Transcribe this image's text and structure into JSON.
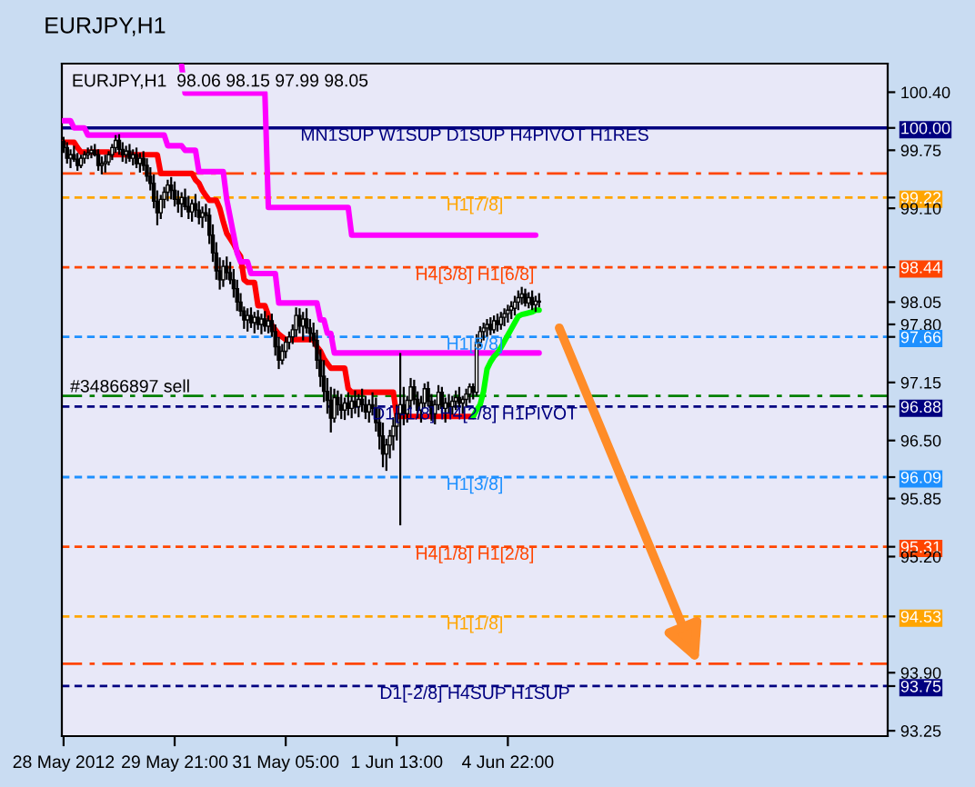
{
  "chart_data": {
    "type": "candlestick",
    "title": "EURJPY,H1",
    "subtitle": "EURJPY,H1  98.06 98.15 97.99 98.05",
    "categories": [
      "28 May 2012",
      null,
      null,
      null,
      null,
      null,
      null,
      null,
      null,
      null,
      null,
      null,
      null,
      null,
      null,
      null,
      null,
      null,
      null,
      null,
      null,
      null,
      null,
      null,
      null,
      null,
      null,
      null,
      null,
      null,
      null,
      null,
      "29 May 21:00",
      null,
      null,
      null,
      null,
      null,
      null,
      null,
      null,
      null,
      null,
      null,
      null,
      null,
      null,
      null,
      null,
      null,
      null,
      null,
      null,
      null,
      null,
      null,
      null,
      null,
      null,
      null,
      null,
      null,
      null,
      null,
      "31 May 05:00",
      null,
      null,
      null,
      null,
      null,
      null,
      null,
      null,
      null,
      null,
      null,
      null,
      null,
      null,
      null,
      null,
      null,
      null,
      null,
      null,
      null,
      null,
      null,
      null,
      null,
      null,
      null,
      null,
      null,
      null,
      null,
      "1 Jun 13:00",
      null,
      null,
      null,
      null,
      null,
      null,
      null,
      null,
      null,
      null,
      null,
      null,
      null,
      null,
      null,
      null,
      null,
      null,
      null,
      null,
      null,
      null,
      null,
      null,
      null,
      null,
      null,
      null,
      null,
      null,
      null,
      "4 Jun 22:00",
      null,
      null,
      null,
      null,
      null,
      null,
      null,
      null,
      null
    ],
    "ohlc": [
      [
        99.85,
        99.9,
        99.72,
        99.78
      ],
      [
        99.78,
        99.84,
        99.6,
        99.66
      ],
      [
        99.66,
        99.76,
        99.55,
        99.7
      ],
      [
        99.7,
        99.8,
        99.62,
        99.65
      ],
      [
        99.65,
        99.72,
        99.52,
        99.58
      ],
      [
        99.58,
        99.7,
        99.55,
        99.66
      ],
      [
        99.66,
        99.74,
        99.6,
        99.7
      ],
      [
        99.7,
        99.78,
        99.65,
        99.72
      ],
      [
        99.72,
        99.8,
        99.66,
        99.75
      ],
      [
        99.75,
        99.82,
        99.68,
        99.7
      ],
      [
        99.7,
        99.76,
        99.52,
        99.58
      ],
      [
        99.58,
        99.68,
        99.48,
        99.6
      ],
      [
        99.6,
        99.7,
        99.5,
        99.62
      ],
      [
        99.62,
        99.74,
        99.58,
        99.7
      ],
      [
        99.7,
        99.82,
        99.64,
        99.78
      ],
      [
        99.78,
        99.92,
        99.72,
        99.86
      ],
      [
        99.86,
        99.93,
        99.7,
        99.76
      ],
      [
        99.76,
        99.84,
        99.62,
        99.7
      ],
      [
        99.7,
        99.8,
        99.6,
        99.74
      ],
      [
        99.74,
        99.82,
        99.62,
        99.66
      ],
      [
        99.66,
        99.76,
        99.58,
        99.7
      ],
      [
        99.7,
        99.78,
        99.55,
        99.6
      ],
      [
        99.6,
        99.72,
        99.5,
        99.66
      ],
      [
        99.66,
        99.74,
        99.52,
        99.58
      ],
      [
        99.58,
        99.66,
        99.4,
        99.46
      ],
      [
        99.46,
        99.56,
        99.3,
        99.38
      ],
      [
        99.38,
        99.48,
        99.1,
        99.18
      ],
      [
        99.18,
        99.3,
        98.91,
        99.05
      ],
      [
        99.05,
        99.25,
        98.98,
        99.2
      ],
      [
        99.2,
        99.34,
        99.1,
        99.28
      ],
      [
        99.28,
        99.42,
        99.18,
        99.36
      ],
      [
        99.36,
        99.45,
        99.2,
        99.3
      ],
      [
        99.3,
        99.4,
        99.12,
        99.2
      ],
      [
        99.2,
        99.3,
        99.05,
        99.15
      ],
      [
        99.15,
        99.28,
        99.0,
        99.22
      ],
      [
        99.22,
        99.32,
        99.08,
        99.12
      ],
      [
        99.12,
        99.24,
        98.98,
        99.06
      ],
      [
        99.06,
        99.2,
        98.95,
        99.15
      ],
      [
        99.15,
        99.26,
        99.0,
        99.08
      ],
      [
        99.08,
        99.18,
        98.92,
        99.0
      ],
      [
        99.0,
        99.12,
        98.88,
        99.05
      ],
      [
        99.05,
        99.15,
        98.95,
        99.02
      ],
      [
        99.02,
        99.1,
        98.7,
        98.8
      ],
      [
        98.8,
        98.92,
        98.5,
        98.6
      ],
      [
        98.6,
        98.72,
        98.3,
        98.4
      ],
      [
        98.4,
        98.55,
        98.19,
        98.3
      ],
      [
        98.3,
        98.52,
        98.22,
        98.45
      ],
      [
        98.45,
        98.56,
        98.3,
        98.38
      ],
      [
        98.38,
        98.5,
        98.25,
        98.3
      ],
      [
        98.3,
        98.42,
        98.1,
        98.2
      ],
      [
        98.2,
        98.3,
        97.95,
        98.05
      ],
      [
        98.05,
        98.15,
        97.89,
        97.95
      ],
      [
        97.95,
        98.0,
        97.75,
        97.85
      ],
      [
        97.85,
        97.98,
        97.72,
        97.9
      ],
      [
        97.9,
        97.99,
        97.76,
        97.82
      ],
      [
        97.82,
        97.94,
        97.7,
        97.88
      ],
      [
        97.88,
        97.96,
        97.74,
        97.8
      ],
      [
        97.8,
        97.92,
        97.69,
        97.86
      ],
      [
        97.86,
        97.95,
        97.72,
        97.78
      ],
      [
        97.78,
        97.9,
        97.7,
        97.84
      ],
      [
        97.84,
        97.92,
        97.66,
        97.72
      ],
      [
        97.72,
        97.8,
        97.45,
        97.55
      ],
      [
        97.55,
        97.66,
        97.3,
        97.4
      ],
      [
        97.4,
        97.58,
        97.35,
        97.5
      ],
      [
        97.5,
        97.66,
        97.42,
        97.6
      ],
      [
        97.6,
        97.72,
        97.52,
        97.66
      ],
      [
        97.66,
        97.8,
        97.58,
        97.74
      ],
      [
        97.74,
        97.99,
        97.66,
        97.9
      ],
      [
        97.9,
        97.98,
        97.7,
        97.78
      ],
      [
        97.78,
        97.94,
        97.62,
        97.86
      ],
      [
        97.86,
        97.98,
        97.7,
        97.76
      ],
      [
        97.76,
        97.86,
        97.6,
        97.7
      ],
      [
        97.7,
        97.82,
        97.55,
        97.62
      ],
      [
        97.62,
        97.74,
        97.3,
        97.4
      ],
      [
        97.4,
        97.52,
        97.1,
        97.22
      ],
      [
        97.22,
        97.4,
        96.93,
        97.05
      ],
      [
        97.05,
        97.2,
        96.8,
        96.95
      ],
      [
        96.95,
        97.1,
        96.59,
        96.75
      ],
      [
        96.75,
        97.08,
        96.7,
        96.98
      ],
      [
        96.98,
        97.06,
        96.78,
        96.9
      ],
      [
        96.9,
        97.02,
        96.74,
        96.84
      ],
      [
        96.84,
        96.98,
        96.73,
        96.92
      ],
      [
        96.92,
        97.04,
        96.78,
        96.86
      ],
      [
        96.86,
        97.0,
        96.75,
        96.94
      ],
      [
        96.94,
        97.06,
        96.8,
        96.88
      ],
      [
        96.88,
        97.02,
        96.76,
        96.96
      ],
      [
        96.96,
        97.08,
        96.82,
        96.9
      ],
      [
        96.9,
        97.0,
        96.74,
        96.82
      ],
      [
        96.82,
        96.96,
        96.7,
        96.9
      ],
      [
        96.9,
        97.04,
        96.78,
        96.86
      ],
      [
        96.86,
        96.98,
        96.6,
        96.7
      ],
      [
        96.7,
        96.86,
        96.4,
        96.55
      ],
      [
        96.55,
        96.7,
        96.2,
        96.35
      ],
      [
        96.35,
        96.52,
        96.16,
        96.45
      ],
      [
        96.45,
        96.62,
        96.3,
        96.55
      ],
      [
        96.55,
        96.76,
        96.39,
        96.66
      ],
      [
        96.66,
        96.9,
        96.5,
        96.8
      ],
      [
        96.8,
        97.48,
        95.55,
        96.9
      ],
      [
        96.9,
        97.1,
        96.67,
        96.8
      ],
      [
        96.8,
        97.0,
        96.7,
        96.95
      ],
      [
        96.95,
        97.2,
        96.85,
        97.1
      ],
      [
        97.1,
        97.18,
        96.9,
        96.96
      ],
      [
        96.96,
        97.05,
        96.75,
        96.84
      ],
      [
        96.84,
        97.0,
        96.7,
        96.92
      ],
      [
        96.92,
        97.14,
        96.86,
        97.08
      ],
      [
        97.08,
        97.16,
        96.88,
        96.94
      ],
      [
        96.94,
        97.02,
        96.72,
        96.8
      ],
      [
        96.8,
        96.96,
        96.68,
        96.9
      ],
      [
        96.9,
        97.12,
        96.84,
        97.04
      ],
      [
        97.04,
        97.1,
        96.8,
        96.86
      ],
      [
        96.86,
        96.98,
        96.7,
        96.92
      ],
      [
        96.92,
        97.02,
        96.8,
        96.88
      ],
      [
        96.88,
        97.0,
        96.79,
        96.94
      ],
      [
        96.94,
        97.06,
        96.84,
        96.98
      ],
      [
        96.98,
        97.1,
        96.86,
        96.92
      ],
      [
        96.92,
        97.0,
        96.8,
        96.96
      ],
      [
        96.96,
        97.08,
        96.88,
        97.02
      ],
      [
        97.02,
        97.14,
        96.92,
        97.1
      ],
      [
        97.1,
        97.14,
        96.96,
        97.04
      ],
      [
        97.04,
        97.69,
        97.0,
        97.6
      ],
      [
        97.6,
        97.78,
        97.55,
        97.72
      ],
      [
        97.72,
        97.82,
        97.62,
        97.76
      ],
      [
        97.76,
        97.86,
        97.66,
        97.8
      ],
      [
        97.8,
        97.88,
        97.68,
        97.74
      ],
      [
        97.74,
        97.9,
        97.7,
        97.84
      ],
      [
        97.84,
        97.92,
        97.72,
        97.8
      ],
      [
        97.8,
        97.94,
        97.74,
        97.88
      ],
      [
        97.88,
        97.98,
        97.78,
        97.92
      ],
      [
        97.92,
        98.02,
        97.82,
        97.96
      ],
      [
        97.96,
        98.06,
        97.86,
        98.0
      ],
      [
        97.98,
        98.12,
        97.9,
        98.05
      ],
      [
        98.05,
        98.18,
        97.96,
        98.1
      ],
      [
        98.1,
        98.22,
        98.02,
        98.14
      ],
      [
        98.14,
        98.2,
        98.0,
        98.04
      ],
      [
        98.04,
        98.16,
        97.98,
        98.1
      ],
      [
        98.1,
        98.18,
        97.96,
        98.02
      ],
      [
        98.02,
        98.12,
        97.94,
        98.06
      ],
      [
        98.06,
        98.15,
        97.99,
        98.05
      ]
    ],
    "series": [
      {
        "type": "line",
        "color": "#ff0000",
        "values": [
          99.84,
          99.84,
          99.84,
          99.84,
          99.78,
          99.73,
          99.73,
          99.73,
          99.73,
          99.73,
          99.73,
          99.73,
          99.73,
          99.73,
          99.7,
          99.7,
          99.7,
          99.7,
          99.7,
          99.7,
          99.7,
          99.7,
          99.7,
          99.7,
          99.7,
          99.7,
          99.7,
          99.7,
          99.49,
          99.49,
          99.49,
          99.49,
          99.49,
          99.49,
          99.49,
          99.49,
          99.49,
          99.49,
          99.42,
          99.38,
          99.3,
          99.24,
          99.19,
          99.19,
          99.19,
          99.1,
          98.95,
          98.82,
          98.76,
          98.7,
          98.62,
          98.56,
          98.3,
          98.27,
          98.27,
          98.27,
          98.01,
          98.01,
          98.01,
          97.9,
          97.79,
          97.74,
          97.69,
          97.66,
          97.63,
          97.63,
          97.63,
          97.63,
          97.63,
          97.63,
          97.63,
          97.63,
          97.63,
          97.55,
          97.5,
          97.42,
          97.36,
          97.31,
          97.31,
          97.31,
          97.31,
          97.31,
          97.08,
          97.04,
          97.04,
          97.04,
          97.04,
          97.04,
          97.04,
          97.04,
          97.04,
          97.04,
          97.04,
          97.04,
          97.04,
          97.04,
          96.77,
          96.77,
          96.77,
          96.77,
          96.77,
          96.77,
          96.77,
          96.77,
          96.77,
          96.77,
          96.77,
          96.77,
          96.77,
          96.77,
          96.77,
          96.77,
          96.77,
          96.77,
          96.77,
          96.77,
          96.77,
          96.77,
          96.77,
          null,
          null,
          null,
          null,
          null,
          null,
          null,
          null,
          null,
          null,
          null,
          null,
          null,
          null,
          null,
          null,
          null,
          null,
          null
        ]
      },
      {
        "type": "line",
        "color": "#ff00ff",
        "values": [
          100.08,
          100.08,
          100.08,
          100.0,
          100.0,
          100.0,
          100.0,
          99.92,
          99.92,
          99.92,
          99.92,
          99.92,
          99.92,
          99.92,
          99.92,
          99.92,
          99.92,
          99.92,
          99.92,
          99.92,
          99.92,
          99.92,
          99.92,
          99.92,
          99.92,
          99.92,
          99.92,
          99.92,
          99.92,
          99.92,
          99.8,
          99.8,
          99.8,
          99.8,
          99.8,
          99.75,
          99.75,
          99.75,
          99.75,
          99.51,
          99.51,
          99.51,
          99.51,
          99.51,
          99.51,
          99.51,
          99.51,
          99.2,
          99.0,
          98.8,
          98.6,
          98.5,
          98.5,
          98.5,
          98.37,
          98.37,
          98.37,
          98.37,
          98.37,
          98.37,
          98.37,
          98.37,
          98.04,
          98.04,
          98.04,
          98.04,
          98.04,
          98.04,
          98.04,
          98.04,
          98.04,
          98.04,
          98.04,
          98.04,
          97.85,
          97.85,
          97.7,
          97.7,
          97.48,
          97.48,
          97.48,
          97.48,
          97.48,
          97.48,
          97.48,
          97.48,
          97.48,
          97.48,
          97.48,
          97.48,
          97.48,
          97.48,
          97.48,
          97.48,
          97.48,
          97.48,
          97.48,
          97.48,
          97.48,
          97.48,
          97.48,
          97.48,
          97.48,
          97.48,
          97.48,
          97.48,
          97.48,
          97.48,
          97.48,
          97.48,
          97.48,
          97.48,
          97.48,
          97.48,
          97.48,
          97.48,
          97.48,
          97.48,
          97.48,
          97.48,
          97.48,
          97.48,
          97.48,
          97.48,
          97.48,
          97.48,
          97.48,
          97.48,
          97.48,
          97.48,
          97.48,
          97.48,
          97.48,
          97.48,
          97.48,
          97.48,
          97.48,
          97.48
        ]
      },
      {
        "type": "line",
        "color": "#ff00ff",
        "values": [
          null,
          null,
          null,
          null,
          null,
          null,
          null,
          null,
          null,
          null,
          null,
          null,
          null,
          null,
          null,
          null,
          null,
          null,
          null,
          null,
          null,
          null,
          null,
          null,
          null,
          null,
          null,
          null,
          null,
          null,
          null,
          null,
          null,
          null,
          100.7,
          100.39,
          100.39,
          100.39,
          100.39,
          100.39,
          100.39,
          100.39,
          100.39,
          100.39,
          100.39,
          100.39,
          100.39,
          100.39,
          100.39,
          100.39,
          100.39,
          100.39,
          100.39,
          100.39,
          100.39,
          100.39,
          100.39,
          100.39,
          100.39,
          99.11,
          99.11,
          99.11,
          99.11,
          99.11,
          99.11,
          99.11,
          99.11,
          99.11,
          99.11,
          99.11,
          99.11,
          99.11,
          99.11,
          99.11,
          99.11,
          99.11,
          99.11,
          99.11,
          99.11,
          99.11,
          99.11,
          99.11,
          99.11,
          98.8,
          98.8,
          98.8,
          98.8,
          98.8,
          98.8,
          98.8,
          98.8,
          98.8,
          98.8,
          98.8,
          98.8,
          98.8,
          98.8,
          98.8,
          98.8,
          98.8,
          98.8,
          98.8,
          98.8,
          98.8,
          98.8,
          98.8,
          98.8,
          98.8,
          98.8,
          98.8,
          98.8,
          98.8,
          98.8,
          98.8,
          98.8,
          98.8,
          98.8,
          98.8,
          98.8,
          98.8,
          98.8,
          98.8,
          98.8,
          98.8,
          98.8,
          98.8,
          98.8,
          98.8,
          98.8,
          98.8,
          98.8,
          98.8,
          98.8,
          98.8,
          98.8,
          98.8,
          98.8,
          null
        ]
      },
      {
        "type": "line",
        "color": "#00ff00",
        "values": [
          null,
          null,
          null,
          null,
          null,
          null,
          null,
          null,
          null,
          null,
          null,
          null,
          null,
          null,
          null,
          null,
          null,
          null,
          null,
          null,
          null,
          null,
          null,
          null,
          null,
          null,
          null,
          null,
          null,
          null,
          null,
          null,
          null,
          null,
          null,
          null,
          null,
          null,
          null,
          null,
          null,
          null,
          null,
          null,
          null,
          null,
          null,
          null,
          null,
          null,
          null,
          null,
          null,
          null,
          null,
          null,
          null,
          null,
          null,
          null,
          null,
          null,
          null,
          null,
          null,
          null,
          null,
          null,
          null,
          null,
          null,
          null,
          null,
          null,
          null,
          null,
          null,
          null,
          null,
          null,
          null,
          null,
          null,
          null,
          null,
          null,
          null,
          null,
          null,
          null,
          null,
          null,
          null,
          null,
          null,
          null,
          null,
          null,
          null,
          null,
          null,
          null,
          null,
          null,
          null,
          null,
          null,
          null,
          null,
          null,
          null,
          null,
          null,
          null,
          null,
          null,
          null,
          null,
          96.77,
          96.84,
          96.9,
          97.05,
          97.3,
          97.38,
          97.44,
          97.48,
          97.54,
          97.61,
          97.68,
          97.75,
          97.82,
          97.89,
          97.91,
          97.92,
          97.93,
          97.94,
          97.96,
          97.96
        ]
      }
    ],
    "ylim": [
      93.19,
      100.72
    ],
    "yticks": [
      {
        "value": 100.4,
        "label": "100.40"
      },
      {
        "value": 100.0,
        "label": "100.00"
      },
      {
        "value": 99.75,
        "label": "99.75"
      },
      {
        "value": 99.22,
        "label": "99.22"
      },
      {
        "value": 99.1,
        "label": "99.10"
      },
      {
        "value": 98.44,
        "label": "98.44"
      },
      {
        "value": 98.05,
        "label": "98.05"
      },
      {
        "value": 97.8,
        "label": "97.80"
      },
      {
        "value": 97.66,
        "label": "97.66"
      },
      {
        "value": 97.15,
        "label": "97.15"
      },
      {
        "value": 96.88,
        "label": "96.88"
      },
      {
        "value": 96.5,
        "label": "96.50"
      },
      {
        "value": 96.09,
        "label": "96.09"
      },
      {
        "value": 95.85,
        "label": "95.85"
      },
      {
        "value": 95.31,
        "label": "95.31"
      },
      {
        "value": 95.2,
        "label": "95.20"
      },
      {
        "value": 94.53,
        "label": "94.53"
      },
      {
        "value": 93.9,
        "label": "93.90"
      },
      {
        "value": 93.75,
        "label": "93.75"
      },
      {
        "value": 93.25,
        "label": "93.25"
      }
    ],
    "ref_lines": [
      {
        "axis": "y",
        "value": 100.0,
        "label": "MN1SUP W1SUP D1SUP H4PIVOT H1RES",
        "color": "#000080",
        "line_style": "solid"
      },
      {
        "axis": "y",
        "value": 99.49,
        "color": "#ff4500",
        "line_style": "dashdot"
      },
      {
        "axis": "y",
        "value": 99.22,
        "label": "H1[7/8]",
        "color": "#ffa500",
        "line_style": "dashed"
      },
      {
        "axis": "y",
        "value": 98.44,
        "label": "H4[3/8] H1[6/8]",
        "color": "#ff4500",
        "line_style": "dashed"
      },
      {
        "axis": "y",
        "value": 97.66,
        "label": "H1[5/8]",
        "color": "#1e90ff",
        "line_style": "dashed"
      },
      {
        "axis": "y",
        "value": 97.0,
        "color": "#008000",
        "line_style": "dashdot"
      },
      {
        "axis": "y",
        "value": 96.88,
        "label": "D1[-1/8] H4[2/8] H1PIVOT",
        "color": "#000080",
        "line_style": "dashed"
      },
      {
        "axis": "y",
        "value": 96.09,
        "label": "H1[3/8]",
        "color": "#1e90ff",
        "line_style": "dashed"
      },
      {
        "axis": "y",
        "value": 95.31,
        "label": "H4[1/8] H1[2/8]",
        "color": "#ff4500",
        "line_style": "dashed"
      },
      {
        "axis": "y",
        "value": 94.53,
        "label": "H1[1/8]",
        "color": "#ffa500",
        "line_style": "dashed"
      },
      {
        "axis": "y",
        "value": 94.0,
        "color": "#ff4500",
        "line_style": "dashdot"
      },
      {
        "axis": "y",
        "value": 93.75,
        "label": "D1[-2/8] H4SUP H1SUP",
        "color": "#000080",
        "line_style": "dashed"
      }
    ],
    "annotations": [
      {
        "text": "#34866897 sell",
        "y": 97.0
      }
    ]
  }
}
